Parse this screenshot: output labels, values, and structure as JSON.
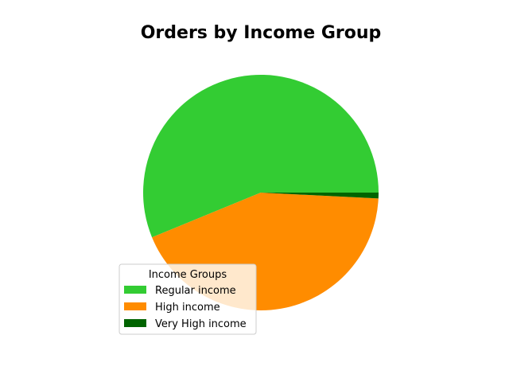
{
  "chart_data": {
    "type": "pie",
    "title": "Orders by Income Group",
    "legend_title": "Income Groups",
    "legend_placement": "lower-left",
    "start_angle_deg": 0,
    "direction": "counterclockwise",
    "slices": [
      {
        "label": "Regular income",
        "value": 56.2,
        "color": "#33cc33"
      },
      {
        "label": "High income",
        "value": 43.0,
        "color": "#ff8c00"
      },
      {
        "label": "Very High income",
        "value": 0.8,
        "color": "#006400"
      }
    ]
  }
}
